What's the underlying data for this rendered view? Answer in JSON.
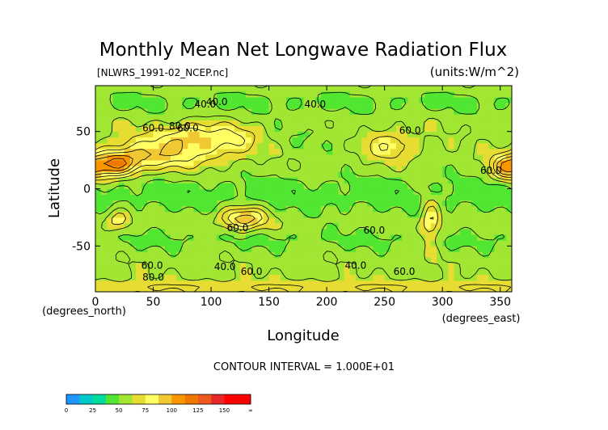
{
  "chart_data": {
    "type": "heatmap",
    "title": "Monthly Mean Net Longwave Radiation Flux",
    "subtitle_left": "[NLWRS_1991-02_NCEP.nc]",
    "subtitle_right": "(units:W/m^2)",
    "xlabel": "Longitude",
    "ylabel": "Latitude",
    "x_unit_label": "(degrees_east)",
    "y_unit_label": "(degrees_north)",
    "xlim": [
      0,
      360
    ],
    "ylim": [
      -90,
      90
    ],
    "x_ticks": [
      0,
      50,
      100,
      150,
      200,
      250,
      300,
      350
    ],
    "y_ticks": [
      -50,
      0,
      50
    ],
    "footer": "CONTOUR INTERVAL = 1.000E+01",
    "contour_labels": [
      {
        "text": "40.0",
        "lon": 95,
        "lat": 71
      },
      {
        "text": "40.0",
        "lon": 105,
        "lat": 73
      },
      {
        "text": "60.0",
        "lon": 50,
        "lat": 50
      },
      {
        "text": "80.0",
        "lon": 73,
        "lat": 52
      },
      {
        "text": "60.0",
        "lon": 80,
        "lat": 50
      },
      {
        "text": "60.0",
        "lon": 272,
        "lat": 48
      },
      {
        "text": "60.0",
        "lon": 123,
        "lat": -37
      },
      {
        "text": "60.0",
        "lon": 49,
        "lat": -70
      },
      {
        "text": "40.0",
        "lon": 112,
        "lat": -71
      },
      {
        "text": "60.0",
        "lon": 135,
        "lat": -75
      },
      {
        "text": "80.0",
        "lon": 50,
        "lat": -80
      },
      {
        "text": "60.0",
        "lon": 241,
        "lat": -39
      },
      {
        "text": "40.0",
        "lon": 225,
        "lat": -70
      },
      {
        "text": "60.0",
        "lon": 267,
        "lat": -75
      },
      {
        "text": "40.0",
        "lon": 190,
        "lat": 71
      },
      {
        "text": "60.0",
        "lon": 342,
        "lat": 13
      }
    ],
    "colorbar": {
      "ticks": [
        "0",
        "25",
        "50",
        "75",
        "100",
        "125",
        "150",
        "∞"
      ],
      "colors": [
        "#1e96ff",
        "#00c8c8",
        "#00dca0",
        "#50e632",
        "#a0e632",
        "#e6dc32",
        "#ffff64",
        "#f0c832",
        "#fa9600",
        "#f07800",
        "#ec5a1e",
        "#e62828",
        "#ff0000",
        "#ff0000"
      ]
    }
  }
}
